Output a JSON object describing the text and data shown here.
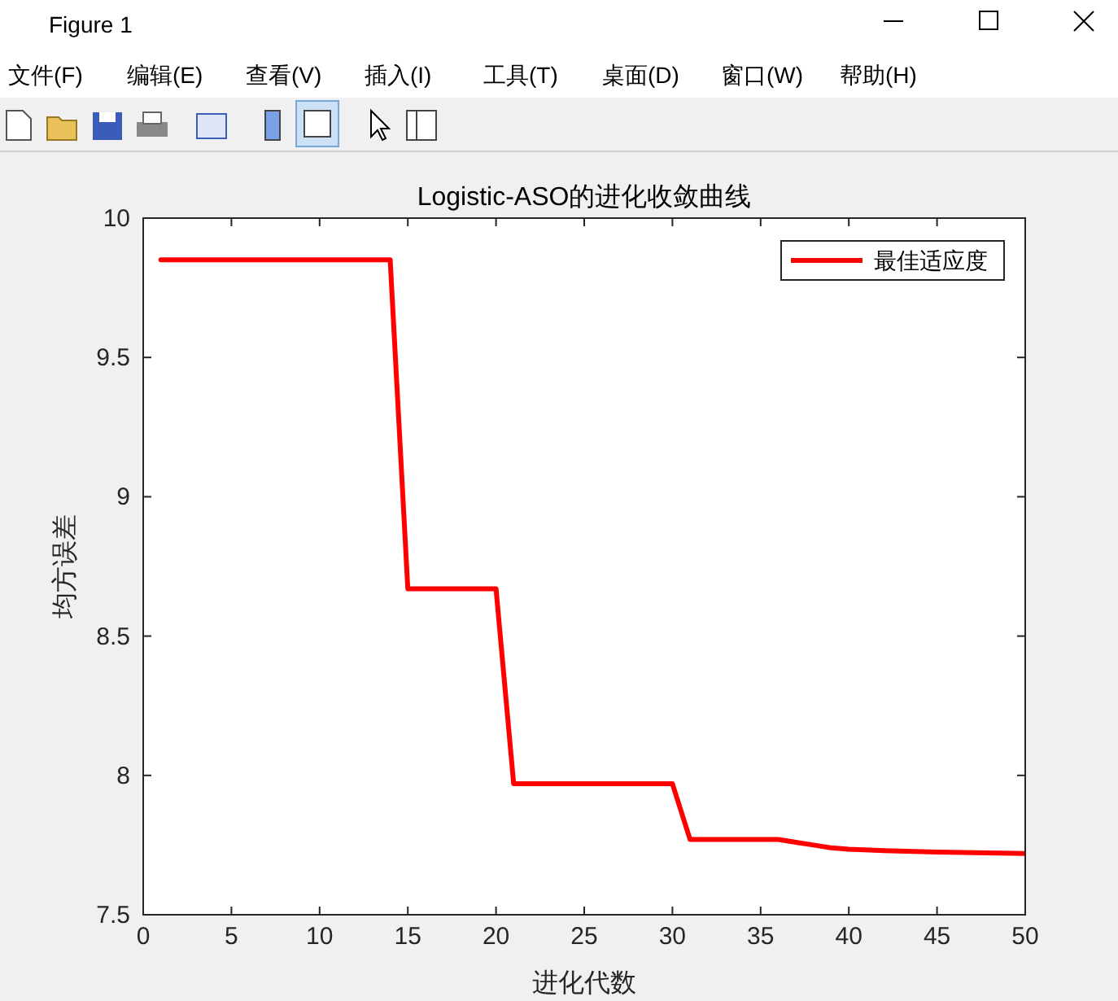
{
  "chart_data": {
    "type": "line",
    "title": "Logistic-ASO的进化收敛曲线",
    "xlabel": "进化代数",
    "ylabel": "均方误差",
    "annotations": [
      "Figure 1",
      "文件(F)",
      "编辑(E)",
      "查看(V)",
      "插入(I)",
      "工具(T)",
      "桌面(D)",
      "窗口(W)",
      "帮助(H)"
    ],
    "x": [
      1,
      14,
      15,
      20,
      21,
      30,
      31,
      36,
      37,
      38,
      39,
      40,
      42,
      45,
      50
    ],
    "series": [
      {
        "name": "最佳适应度",
        "color": "#ff0000",
        "values": [
          9.85,
          9.85,
          8.67,
          8.67,
          7.97,
          7.97,
          7.77,
          7.77,
          7.76,
          7.75,
          7.74,
          7.735,
          7.73,
          7.725,
          7.72
        ]
      }
    ],
    "xlim": [
      0,
      50
    ],
    "xticks": [
      0,
      5,
      10,
      15,
      20,
      25,
      30,
      35,
      40,
      45,
      50
    ],
    "ylim": [
      7.5,
      10
    ],
    "yticks": [
      7.5,
      8,
      8.5,
      9,
      9.5,
      10
    ],
    "grid": false,
    "legend": "top right",
    "marker": "none",
    "line_style": "solid"
  }
}
